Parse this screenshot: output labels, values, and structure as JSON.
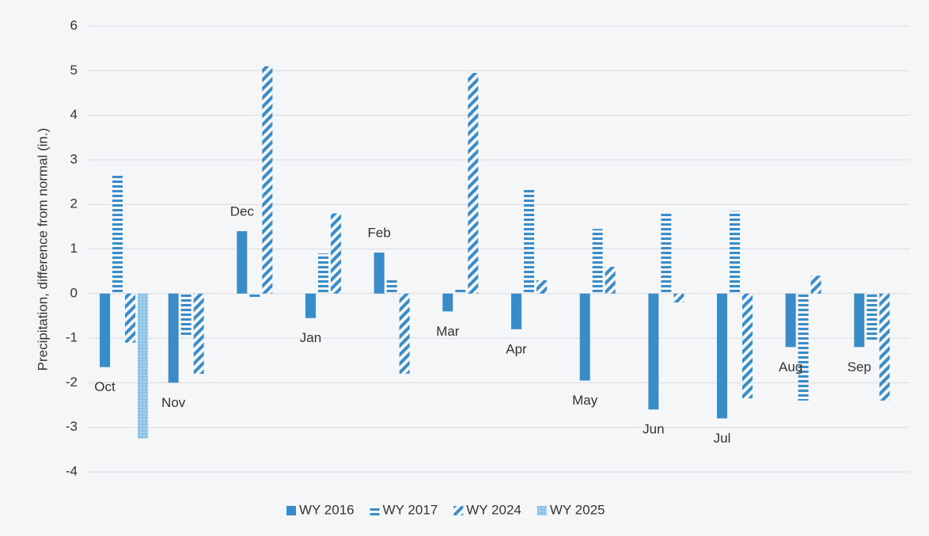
{
  "chart_data": {
    "type": "bar",
    "y_label": "Precipitation, difference from normal (in.)",
    "categories": [
      "Oct",
      "Nov",
      "Dec",
      "Jan",
      "Feb",
      "Mar",
      "Apr",
      "May",
      "Jun",
      "Jul",
      "Aug",
      "Sep"
    ],
    "series": [
      {
        "name": "WY 2016",
        "color": "#3a8cc9",
        "pattern": "solid",
        "values": [
          -1.65,
          -2.0,
          1.4,
          -0.55,
          0.92,
          -0.4,
          -0.8,
          -1.95,
          -2.6,
          -2.8,
          -1.2,
          -1.2
        ]
      },
      {
        "name": "WY 2017",
        "color": "#3a8cc9",
        "pattern": "horizontal",
        "values": [
          2.65,
          -0.95,
          -0.1,
          0.9,
          0.35,
          0.1,
          2.35,
          1.45,
          1.8,
          1.85,
          -2.4,
          -1.05
        ]
      },
      {
        "name": "WY 2024",
        "color": "#3a8cc9",
        "pattern": "diagonal",
        "values": [
          -1.1,
          -1.8,
          5.1,
          1.8,
          -1.8,
          4.95,
          0.3,
          0.6,
          -0.2,
          -2.35,
          0.4,
          -2.4
        ]
      },
      {
        "name": "WY 2025",
        "color": "#8ec3e6",
        "pattern": "dots",
        "values": [
          -3.25,
          null,
          null,
          null,
          null,
          null,
          null,
          null,
          null,
          null,
          null,
          null
        ]
      }
    ],
    "ylim": [
      -4,
      6
    ],
    "yticks": [
      -4,
      -3,
      -2,
      -1,
      0,
      1,
      2,
      3,
      4,
      5,
      6
    ],
    "grid": true,
    "legend": "bottom"
  }
}
